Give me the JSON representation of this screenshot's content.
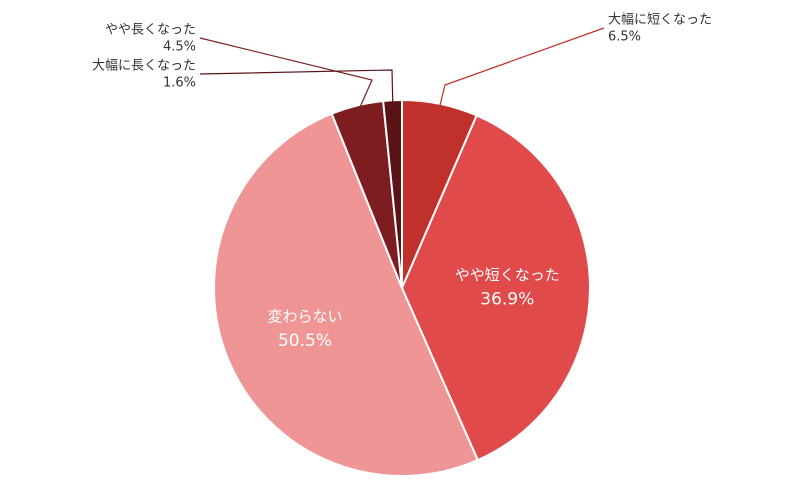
{
  "chart_data": {
    "type": "pie",
    "categories": [
      "大幅に短くなった",
      "やや短くなった",
      "変わらない",
      "やや長くなった",
      "大幅に長くなった"
    ],
    "values": [
      6.5,
      36.9,
      50.5,
      4.5,
      1.6
    ],
    "value_labels": [
      "6.5%",
      "36.9%",
      "50.5%",
      "4.5%",
      "1.6%"
    ],
    "colors": [
      "#c1312c",
      "#e04a4b",
      "#f09596",
      "#7e1d20",
      "#5b1317"
    ]
  }
}
